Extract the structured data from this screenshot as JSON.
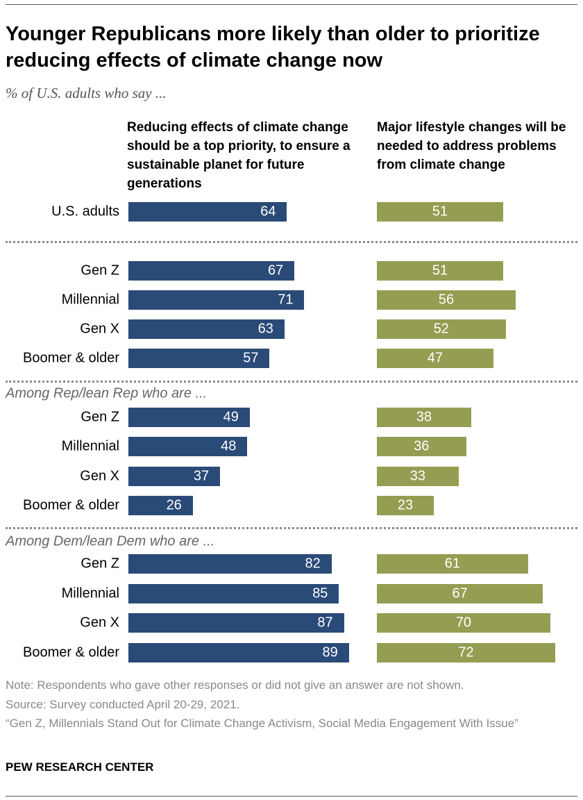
{
  "title": "Younger Republicans more likely than older to prioritize reducing effects of climate change now",
  "subtitle": "% of U.S. adults who say ...",
  "chart_data": {
    "type": "bar",
    "orientation": "horizontal",
    "colors": {
      "Reducing effects of climate change should be a top priority, to ensure a sustainable planet for future generations": "#2a4a78",
      "Major lifestyle changes will be needed to address problems from climate change": "#959d52"
    },
    "series": [
      {
        "name": "Reducing effects of climate change should be a top priority, to ensure a sustainable planet for future generations"
      },
      {
        "name": "Major lifestyle changes will be needed to address problems from climate change"
      }
    ],
    "groups": [
      {
        "label": "",
        "rows": [
          {
            "category": "U.S. adults",
            "values": [
              64,
              51
            ]
          }
        ]
      },
      {
        "label": "",
        "rows": [
          {
            "category": "Gen Z",
            "values": [
              67,
              51
            ]
          },
          {
            "category": "Millennial",
            "values": [
              71,
              56
            ]
          },
          {
            "category": "Gen X",
            "values": [
              63,
              52
            ]
          },
          {
            "category": "Boomer & older",
            "values": [
              57,
              47
            ]
          }
        ]
      },
      {
        "label": "Among Rep/lean Rep who are ...",
        "rows": [
          {
            "category": "Gen Z",
            "values": [
              49,
              38
            ]
          },
          {
            "category": "Millennial",
            "values": [
              48,
              36
            ]
          },
          {
            "category": "Gen X",
            "values": [
              37,
              33
            ]
          },
          {
            "category": "Boomer & older",
            "values": [
              26,
              23
            ]
          }
        ]
      },
      {
        "label": "Among Dem/lean Dem who are ...",
        "rows": [
          {
            "category": "Gen Z",
            "values": [
              82,
              61
            ]
          },
          {
            "category": "Millennial",
            "values": [
              85,
              67
            ]
          },
          {
            "category": "Gen X",
            "values": [
              87,
              70
            ]
          },
          {
            "category": "Boomer & older",
            "values": [
              89,
              72
            ]
          }
        ]
      }
    ]
  },
  "notes": [
    "Note: Respondents who gave other responses or did not give an answer are not shown.",
    "Source: Survey conducted April 20-29, 2021.",
    "“Gen Z, Millennials Stand Out for Climate Change Activism, Social Media Engagement With Issue”"
  ],
  "brand": "PEW RESEARCH CENTER"
}
